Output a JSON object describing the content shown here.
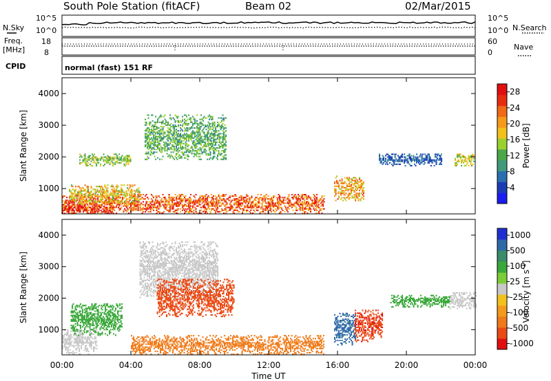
{
  "header": {
    "station": "South Pole Station (fitACF)",
    "beam": "Beam 02",
    "date": "02/Mar/2015"
  },
  "strip": {
    "nsky_label": "N.Sky",
    "nsearch_label": "N.Search",
    "nsky_ticks": [
      "10^5",
      "10^0"
    ],
    "nsearch_ticks": [
      "10^5",
      "10^0"
    ],
    "freq_label": "Freq.",
    "freq_unit": "[MHz]",
    "freq_ticks": [
      "18",
      "8"
    ],
    "nave_label": "Nave",
    "nave_ticks": [
      "60",
      "0"
    ],
    "cpid_label": "CPID",
    "cpid_text": "normal (fast) 151 RF"
  },
  "colors": {
    "power_scale": [
      "#1c1cf0",
      "#1c3cb4",
      "#2a6fb0",
      "#3f9a7c",
      "#4aa84a",
      "#9bd12e",
      "#f2c21a",
      "#f79a1c",
      "#f06a18",
      "#e82c12",
      "#e01010"
    ],
    "velocity_scale": [
      "#2030d0",
      "#2e6aa8",
      "#3a8c6a",
      "#3aa83a",
      "#7ccc3a",
      "#c8c8c8",
      "#f2c21a",
      "#f39a1c",
      "#ef7a1a",
      "#ea4a14",
      "#e01010"
    ]
  },
  "chart_data": [
    {
      "type": "heatmap",
      "name": "power",
      "xlabel": "Time UT",
      "ylabel": "Slant Range [km]",
      "xlim": [
        0,
        24
      ],
      "ylim": [
        200,
        4500
      ],
      "x_ticks": [
        "00:00",
        "04:00",
        "08:00",
        "12:00",
        "16:00",
        "20:00",
        "00:00"
      ],
      "y_ticks": [
        "1000",
        "2000",
        "3000",
        "4000"
      ],
      "colorbar_label": "Power [dB]",
      "colorbar_ticks": [
        "4",
        "8",
        "12",
        "16",
        "20",
        "24",
        "28"
      ],
      "colorbar_range": [
        0,
        30
      ],
      "features": [
        {
          "t_start": 0.0,
          "t_end": 15.2,
          "r_center": 500,
          "r_width": 300,
          "value": 24
        },
        {
          "t_start": 0.0,
          "t_end": 3.0,
          "r_center": 300,
          "r_width": 150,
          "value": 28
        },
        {
          "t_start": 0.4,
          "t_end": 4.5,
          "r_center": 800,
          "r_width": 300,
          "value": 18
        },
        {
          "t_start": 1.0,
          "t_end": 4.0,
          "r_center": 1900,
          "r_width": 200,
          "value": 14
        },
        {
          "t_start": 4.8,
          "t_end": 9.5,
          "r_center": 2600,
          "r_width": 700,
          "value": 12
        },
        {
          "t_start": 15.8,
          "t_end": 17.5,
          "r_center": 1000,
          "r_width": 400,
          "value": 20
        },
        {
          "t_start": 18.4,
          "t_end": 22.0,
          "r_center": 1900,
          "r_width": 200,
          "value": 6
        },
        {
          "t_start": 22.8,
          "t_end": 23.9,
          "r_center": 1900,
          "r_width": 200,
          "value": 16
        }
      ]
    },
    {
      "type": "heatmap",
      "name": "velocity",
      "xlabel": "Time UT",
      "ylabel": "Slant Range [km]",
      "xlim": [
        0,
        24
      ],
      "ylim": [
        200,
        4500
      ],
      "x_ticks": [
        "00:00",
        "04:00",
        "08:00",
        "12:00",
        "16:00",
        "20:00",
        "00:00"
      ],
      "y_ticks": [
        "1000",
        "2000",
        "3000",
        "4000"
      ],
      "colorbar_label": "Velocity [m s^-1]",
      "colorbar_ticks": [
        "1000",
        "500",
        "100",
        "25",
        "-25",
        "-100",
        "-500",
        "-1000"
      ],
      "features": [
        {
          "t_start": 4.0,
          "t_end": 15.2,
          "r_center": 500,
          "r_width": 300,
          "value": -300
        },
        {
          "t_start": 0.0,
          "t_end": 2.0,
          "r_center": 600,
          "r_width": 400,
          "value": 0
        },
        {
          "t_start": 0.5,
          "t_end": 3.5,
          "r_center": 1300,
          "r_width": 500,
          "value": 200
        },
        {
          "t_start": 4.5,
          "t_end": 9.0,
          "r_center": 2900,
          "r_width": 900,
          "value": -10
        },
        {
          "t_start": 5.5,
          "t_end": 10.0,
          "r_center": 2000,
          "r_width": 600,
          "value": -800
        },
        {
          "t_start": 15.8,
          "t_end": 17.0,
          "r_center": 1000,
          "r_width": 500,
          "value": 600
        },
        {
          "t_start": 17.0,
          "t_end": 18.6,
          "r_center": 1100,
          "r_width": 500,
          "value": -900
        },
        {
          "t_start": 19.0,
          "t_end": 22.5,
          "r_center": 1900,
          "r_width": 200,
          "value": 150
        },
        {
          "t_start": 22.5,
          "t_end": 24.0,
          "r_center": 1900,
          "r_width": 250,
          "value": 0
        }
      ]
    }
  ]
}
